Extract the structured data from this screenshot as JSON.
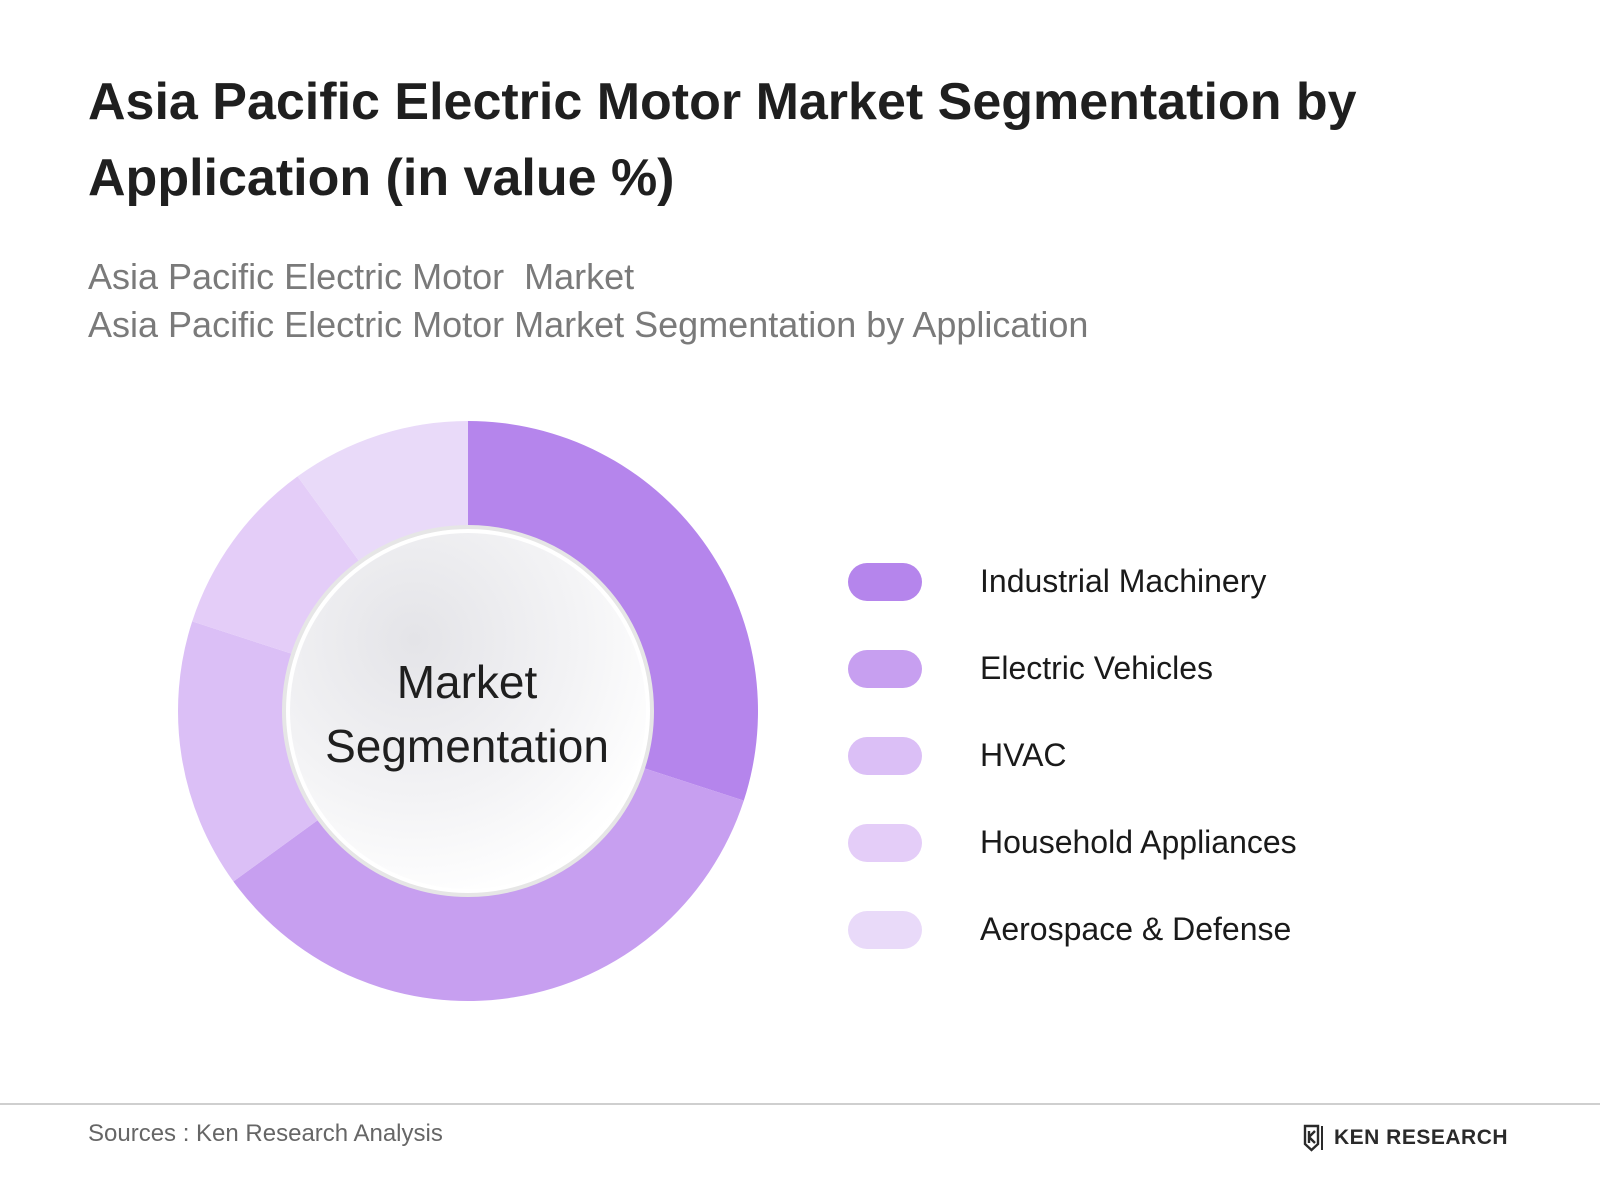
{
  "header": {
    "title": "Asia Pacific Electric Motor Market Segmentation by Application (in value %)",
    "subtitle_line1": "Asia Pacific Electric Motor  Market",
    "subtitle_line2": "Asia Pacific Electric Motor Market Segmentation by Application"
  },
  "center_label": {
    "line1": "Market",
    "line2": "Segmentation"
  },
  "footer": {
    "sources": "Sources : Ken Research Analysis",
    "brand": "KEN RESEARCH"
  },
  "chart_data": {
    "type": "pie",
    "style": "donut",
    "categories": [
      "Industrial Machinery",
      "Electric Vehicles",
      "HVAC",
      "Household Appliances",
      "Aerospace & Defense"
    ],
    "values": [
      30,
      35,
      15,
      10,
      10
    ],
    "colors": [
      "#b585ec",
      "#c79ff0",
      "#dbbff6",
      "#e4cdf8",
      "#e9daf9"
    ],
    "start_angle_deg": 0,
    "direction": "clockwise",
    "legend_position": "right",
    "data_labels": false
  }
}
